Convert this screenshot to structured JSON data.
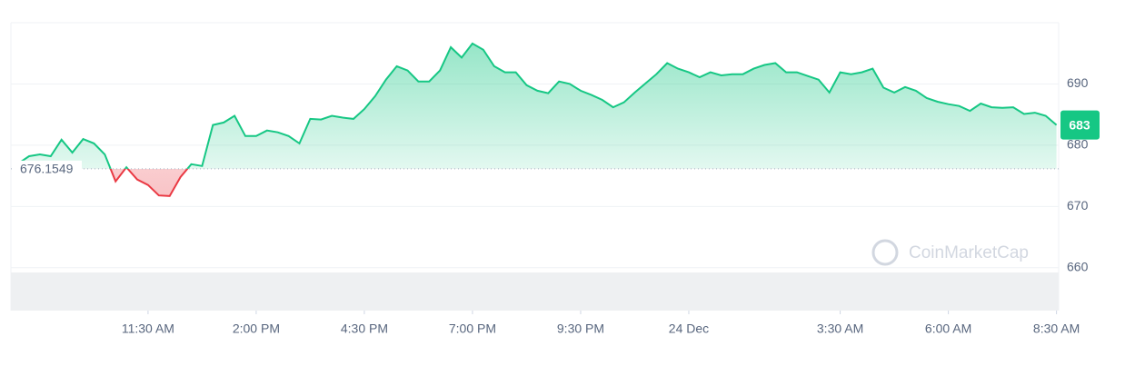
{
  "chart_data": {
    "type": "line",
    "x": [
      8.5,
      8.75,
      9,
      9.25,
      9.5,
      9.75,
      10,
      10.25,
      10.5,
      10.75,
      11,
      11.25,
      11.5,
      11.75,
      12,
      12.25,
      12.5,
      12.75,
      13,
      13.25,
      13.5,
      13.75,
      14,
      14.25,
      14.5,
      14.75,
      15,
      15.25,
      15.5,
      15.75,
      16,
      16.25,
      16.5,
      16.75,
      17,
      17.25,
      17.5,
      17.75,
      18,
      18.25,
      18.5,
      18.75,
      19,
      19.25,
      19.5,
      19.75,
      20,
      20.25,
      20.5,
      20.75,
      21,
      21.25,
      21.5,
      21.75,
      22,
      22.25,
      22.5,
      22.75,
      23,
      23.25,
      23.5,
      23.75,
      24,
      24.25,
      24.5,
      24.75,
      25,
      25.25,
      25.5,
      25.75,
      26,
      26.25,
      26.5,
      26.75,
      27,
      27.25,
      27.5,
      27.75,
      28,
      28.25,
      28.5,
      28.75,
      29,
      29.25,
      29.5,
      29.75,
      30,
      30.25,
      30.5,
      30.75,
      31,
      31.25,
      31.5,
      31.75,
      32,
      32.25,
      32.5
    ],
    "values": [
      677.0,
      678.2,
      678.5,
      678.2,
      680.9,
      678.8,
      681.0,
      680.3,
      678.5,
      674.1,
      676.4,
      674.4,
      673.5,
      671.8,
      671.7,
      674.8,
      676.9,
      676.6,
      683.3,
      683.7,
      684.8,
      681.5,
      681.5,
      682.4,
      682.1,
      681.5,
      680.3,
      684.3,
      684.2,
      684.8,
      684.5,
      684.3,
      685.9,
      688.0,
      690.7,
      692.9,
      692.2,
      690.4,
      690.4,
      692.2,
      696.0,
      694.3,
      696.6,
      695.6,
      692.9,
      691.9,
      691.9,
      689.8,
      688.9,
      688.5,
      690.4,
      690.0,
      688.9,
      688.2,
      687.4,
      686.2,
      687.0,
      688.6,
      690.1,
      691.6,
      693.4,
      692.5,
      691.9,
      691.1,
      691.9,
      691.4,
      691.6,
      691.6,
      692.5,
      693.1,
      693.4,
      691.9,
      691.9,
      691.3,
      690.7,
      688.6,
      691.9,
      691.6,
      691.9,
      692.5,
      689.4,
      688.6,
      689.5,
      688.9,
      687.7,
      687.1,
      686.7,
      686.4,
      685.6,
      686.8,
      686.2,
      686.1,
      686.2,
      685.1,
      685.3,
      684.8,
      683.3
    ],
    "last_label": "683",
    "baseline": 676.1549,
    "up_color": "#16c784",
    "down_color": "#ea3943",
    "xlim": [
      8.33,
      32.55
    ],
    "xticks": [
      {
        "value": 11.5,
        "label": "11:30 AM"
      },
      {
        "value": 14,
        "label": "2:00 PM"
      },
      {
        "value": 16.5,
        "label": "4:30 PM"
      },
      {
        "value": 19,
        "label": "7:00 PM"
      },
      {
        "value": 21.5,
        "label": "9:30 PM"
      },
      {
        "value": 24,
        "label": "24 Dec"
      },
      {
        "value": 27.5,
        "label": "3:30 AM"
      },
      {
        "value": 30,
        "label": "6:00 AM"
      },
      {
        "value": 32.5,
        "label": "8:30 AM"
      }
    ],
    "ylim": [
      653,
      700
    ],
    "yticks": [
      660,
      670,
      680,
      690
    ],
    "grid": true,
    "watermark": "CoinMarketCap"
  }
}
